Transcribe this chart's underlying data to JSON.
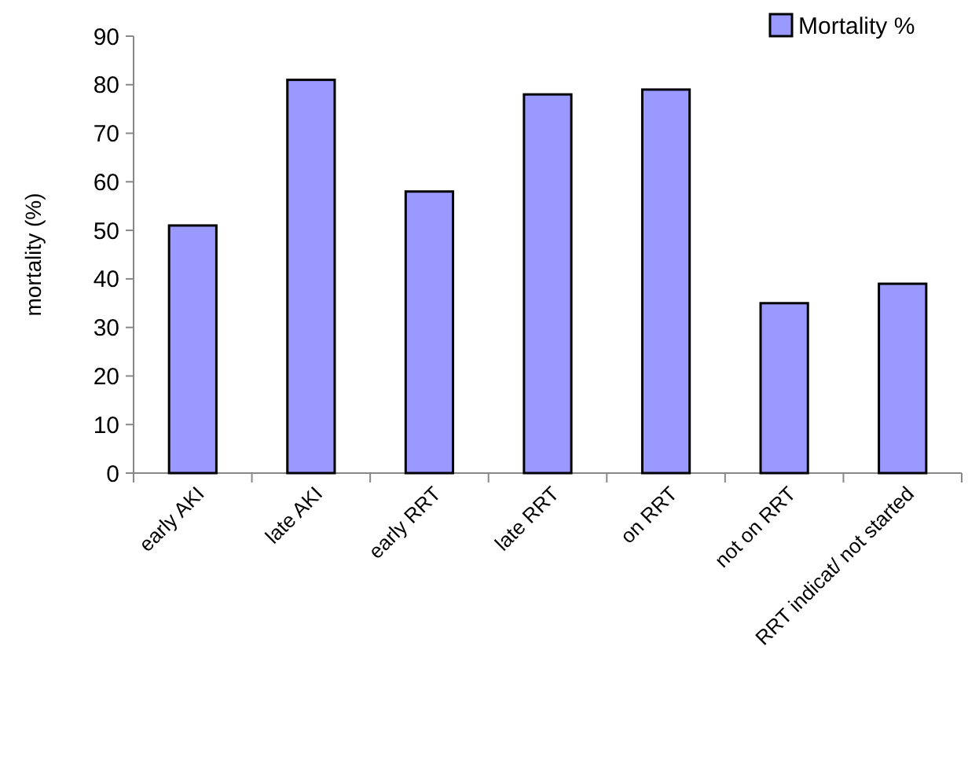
{
  "chart_data": {
    "type": "bar",
    "ylabel": "mortality (%)",
    "categories": [
      "early AKI",
      "late AKI",
      "early RRT",
      "late RRT",
      "on RRT",
      "not on RRT",
      "RRT indicat/ not started"
    ],
    "series": [
      {
        "name": "Mortality %",
        "color": "#9999ff",
        "values": [
          51,
          81,
          58,
          78,
          79,
          35,
          39
        ]
      }
    ],
    "ylim": [
      0,
      90
    ],
    "yticks": [
      0,
      10,
      20,
      30,
      40,
      50,
      60,
      70,
      80,
      90
    ],
    "legend": "top right",
    "grid": false
  }
}
